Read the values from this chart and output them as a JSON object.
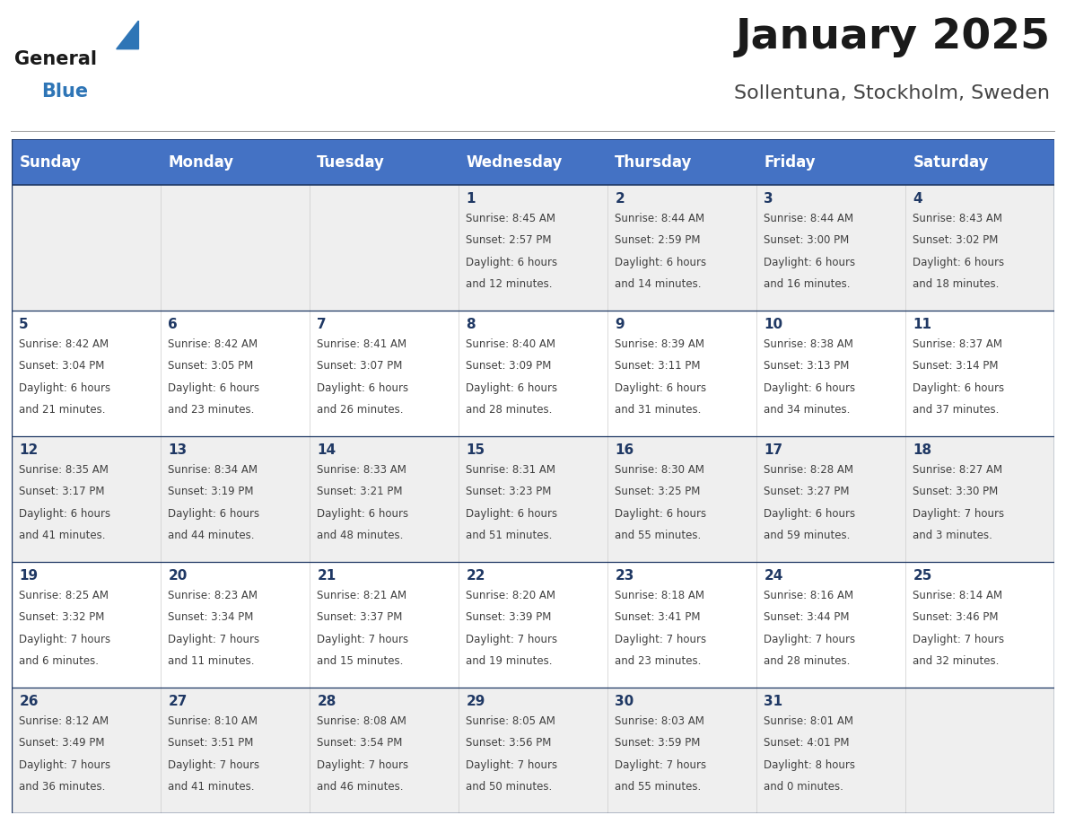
{
  "title": "January 2025",
  "subtitle": "Sollentuna, Stockholm, Sweden",
  "header_bg": "#4472C4",
  "header_text_color": "#FFFFFF",
  "header_font_size": 12,
  "days_of_week": [
    "Sunday",
    "Monday",
    "Tuesday",
    "Wednesday",
    "Thursday",
    "Friday",
    "Saturday"
  ],
  "title_font_size": 34,
  "subtitle_font_size": 16,
  "cell_odd_color": "#EFEFEF",
  "cell_even_color": "#FFFFFF",
  "day_num_color": "#1F3864",
  "text_color": "#404040",
  "line_color": "#1F3864",
  "grid_color": "#CCCCCC",
  "logo_general_color": "#1A1A1A",
  "logo_blue_color": "#2E75B6",
  "weeks": [
    [
      {
        "day": "",
        "sunrise": "",
        "sunset": "",
        "daylight_h": "",
        "daylight_m": ""
      },
      {
        "day": "",
        "sunrise": "",
        "sunset": "",
        "daylight_h": "",
        "daylight_m": ""
      },
      {
        "day": "",
        "sunrise": "",
        "sunset": "",
        "daylight_h": "",
        "daylight_m": ""
      },
      {
        "day": "1",
        "sunrise": "8:45 AM",
        "sunset": "2:57 PM",
        "daylight_h": "6 hours",
        "daylight_m": "and 12 minutes."
      },
      {
        "day": "2",
        "sunrise": "8:44 AM",
        "sunset": "2:59 PM",
        "daylight_h": "6 hours",
        "daylight_m": "and 14 minutes."
      },
      {
        "day": "3",
        "sunrise": "8:44 AM",
        "sunset": "3:00 PM",
        "daylight_h": "6 hours",
        "daylight_m": "and 16 minutes."
      },
      {
        "day": "4",
        "sunrise": "8:43 AM",
        "sunset": "3:02 PM",
        "daylight_h": "6 hours",
        "daylight_m": "and 18 minutes."
      }
    ],
    [
      {
        "day": "5",
        "sunrise": "8:42 AM",
        "sunset": "3:04 PM",
        "daylight_h": "6 hours",
        "daylight_m": "and 21 minutes."
      },
      {
        "day": "6",
        "sunrise": "8:42 AM",
        "sunset": "3:05 PM",
        "daylight_h": "6 hours",
        "daylight_m": "and 23 minutes."
      },
      {
        "day": "7",
        "sunrise": "8:41 AM",
        "sunset": "3:07 PM",
        "daylight_h": "6 hours",
        "daylight_m": "and 26 minutes."
      },
      {
        "day": "8",
        "sunrise": "8:40 AM",
        "sunset": "3:09 PM",
        "daylight_h": "6 hours",
        "daylight_m": "and 28 minutes."
      },
      {
        "day": "9",
        "sunrise": "8:39 AM",
        "sunset": "3:11 PM",
        "daylight_h": "6 hours",
        "daylight_m": "and 31 minutes."
      },
      {
        "day": "10",
        "sunrise": "8:38 AM",
        "sunset": "3:13 PM",
        "daylight_h": "6 hours",
        "daylight_m": "and 34 minutes."
      },
      {
        "day": "11",
        "sunrise": "8:37 AM",
        "sunset": "3:14 PM",
        "daylight_h": "6 hours",
        "daylight_m": "and 37 minutes."
      }
    ],
    [
      {
        "day": "12",
        "sunrise": "8:35 AM",
        "sunset": "3:17 PM",
        "daylight_h": "6 hours",
        "daylight_m": "and 41 minutes."
      },
      {
        "day": "13",
        "sunrise": "8:34 AM",
        "sunset": "3:19 PM",
        "daylight_h": "6 hours",
        "daylight_m": "and 44 minutes."
      },
      {
        "day": "14",
        "sunrise": "8:33 AM",
        "sunset": "3:21 PM",
        "daylight_h": "6 hours",
        "daylight_m": "and 48 minutes."
      },
      {
        "day": "15",
        "sunrise": "8:31 AM",
        "sunset": "3:23 PM",
        "daylight_h": "6 hours",
        "daylight_m": "and 51 minutes."
      },
      {
        "day": "16",
        "sunrise": "8:30 AM",
        "sunset": "3:25 PM",
        "daylight_h": "6 hours",
        "daylight_m": "and 55 minutes."
      },
      {
        "day": "17",
        "sunrise": "8:28 AM",
        "sunset": "3:27 PM",
        "daylight_h": "6 hours",
        "daylight_m": "and 59 minutes."
      },
      {
        "day": "18",
        "sunrise": "8:27 AM",
        "sunset": "3:30 PM",
        "daylight_h": "7 hours",
        "daylight_m": "and 3 minutes."
      }
    ],
    [
      {
        "day": "19",
        "sunrise": "8:25 AM",
        "sunset": "3:32 PM",
        "daylight_h": "7 hours",
        "daylight_m": "and 6 minutes."
      },
      {
        "day": "20",
        "sunrise": "8:23 AM",
        "sunset": "3:34 PM",
        "daylight_h": "7 hours",
        "daylight_m": "and 11 minutes."
      },
      {
        "day": "21",
        "sunrise": "8:21 AM",
        "sunset": "3:37 PM",
        "daylight_h": "7 hours",
        "daylight_m": "and 15 minutes."
      },
      {
        "day": "22",
        "sunrise": "8:20 AM",
        "sunset": "3:39 PM",
        "daylight_h": "7 hours",
        "daylight_m": "and 19 minutes."
      },
      {
        "day": "23",
        "sunrise": "8:18 AM",
        "sunset": "3:41 PM",
        "daylight_h": "7 hours",
        "daylight_m": "and 23 minutes."
      },
      {
        "day": "24",
        "sunrise": "8:16 AM",
        "sunset": "3:44 PM",
        "daylight_h": "7 hours",
        "daylight_m": "and 28 minutes."
      },
      {
        "day": "25",
        "sunrise": "8:14 AM",
        "sunset": "3:46 PM",
        "daylight_h": "7 hours",
        "daylight_m": "and 32 minutes."
      }
    ],
    [
      {
        "day": "26",
        "sunrise": "8:12 AM",
        "sunset": "3:49 PM",
        "daylight_h": "7 hours",
        "daylight_m": "and 36 minutes."
      },
      {
        "day": "27",
        "sunrise": "8:10 AM",
        "sunset": "3:51 PM",
        "daylight_h": "7 hours",
        "daylight_m": "and 41 minutes."
      },
      {
        "day": "28",
        "sunrise": "8:08 AM",
        "sunset": "3:54 PM",
        "daylight_h": "7 hours",
        "daylight_m": "and 46 minutes."
      },
      {
        "day": "29",
        "sunrise": "8:05 AM",
        "sunset": "3:56 PM",
        "daylight_h": "7 hours",
        "daylight_m": "and 50 minutes."
      },
      {
        "day": "30",
        "sunrise": "8:03 AM",
        "sunset": "3:59 PM",
        "daylight_h": "7 hours",
        "daylight_m": "and 55 minutes."
      },
      {
        "day": "31",
        "sunrise": "8:01 AM",
        "sunset": "4:01 PM",
        "daylight_h": "8 hours",
        "daylight_m": "and 0 minutes."
      },
      {
        "day": "",
        "sunrise": "",
        "sunset": "",
        "daylight_h": "",
        "daylight_m": ""
      }
    ]
  ]
}
